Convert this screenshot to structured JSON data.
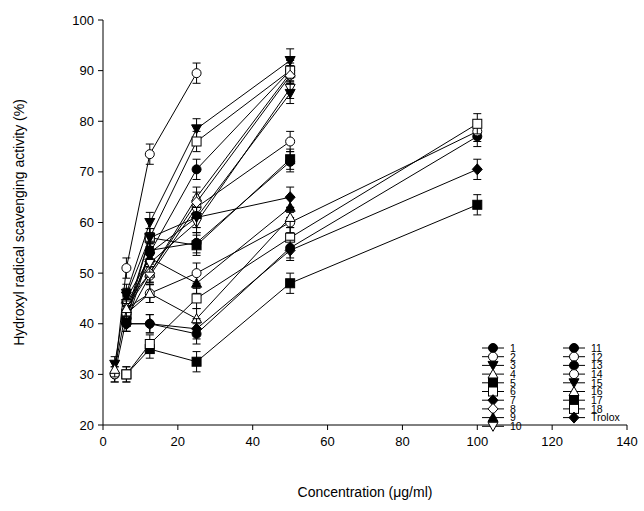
{
  "chart_data": {
    "type": "line",
    "x_label": "Concentration (μg/ml)",
    "y_label": "Hydroxyl radical scavenging activity (%)",
    "x": [
      3.125,
      6.25,
      12.5,
      25,
      50,
      100
    ],
    "xlim": [
      0,
      140
    ],
    "xticks": [
      0,
      20,
      40,
      60,
      80,
      100,
      120,
      140
    ],
    "ylim": [
      20,
      100
    ],
    "yticks": [
      20,
      30,
      40,
      50,
      60,
      70,
      80,
      90,
      100
    ],
    "legend": "lower right",
    "series": [
      {
        "name": "1",
        "color": "#000000",
        "marker": "circle",
        "values": [
          null,
          42,
          54,
          70.5,
          90,
          null
        ],
        "errors": [
          null,
          1.5,
          1.8,
          2,
          2.2,
          null
        ]
      },
      {
        "name": "2",
        "color": "#000000",
        "marker": "circle-open",
        "values": [
          30,
          41,
          49.5,
          63,
          76,
          null
        ],
        "errors": [
          1.5,
          1.5,
          1.8,
          2,
          2,
          null
        ]
      },
      {
        "name": "3",
        "color": "#000000",
        "marker": "triangle-down",
        "values": [
          32,
          46,
          60,
          78.5,
          92,
          null
        ],
        "errors": [
          1.5,
          1.8,
          2,
          2,
          2.3,
          null
        ]
      },
      {
        "name": "4",
        "color": "#000000",
        "marker": "triangle-up-open",
        "values": [
          null,
          43,
          50,
          65,
          89.5,
          null
        ],
        "errors": [
          null,
          1.5,
          1.8,
          2,
          2,
          null
        ]
      },
      {
        "name": "5",
        "color": "#000000",
        "marker": "square",
        "values": [
          null,
          41,
          57,
          55.5,
          72.5,
          null
        ],
        "errors": [
          null,
          1.5,
          1.8,
          2,
          2,
          null
        ]
      },
      {
        "name": "6",
        "color": "#000000",
        "marker": "square-open",
        "values": [
          null,
          42,
          57,
          76,
          90,
          null
        ],
        "errors": [
          null,
          1.5,
          1.8,
          2,
          2,
          null
        ]
      },
      {
        "name": "7",
        "color": "#000000",
        "marker": "diamond",
        "values": [
          null,
          40,
          54,
          61,
          65,
          null
        ],
        "errors": [
          null,
          1.5,
          1.8,
          2,
          2,
          null
        ]
      },
      {
        "name": "8",
        "color": "#000000",
        "marker": "diamond-open",
        "values": [
          null,
          44,
          50,
          64,
          89,
          null
        ],
        "errors": [
          null,
          1.5,
          1.8,
          2,
          2,
          null
        ]
      },
      {
        "name": "9",
        "color": "#000000",
        "marker": "triangle-up",
        "values": [
          null,
          45,
          53,
          48,
          63,
          null
        ],
        "errors": [
          null,
          1.5,
          1.8,
          2,
          2,
          null
        ]
      },
      {
        "name": "10",
        "color": "#000000",
        "marker": "triangle-down-open",
        "values": [
          null,
          44,
          52,
          60,
          86.5,
          null
        ],
        "errors": [
          null,
          1.5,
          1.8,
          2,
          2,
          null
        ]
      },
      {
        "name": "11",
        "color": "#000000",
        "marker": "circle",
        "values": [
          null,
          41,
          54.5,
          56,
          72,
          null
        ],
        "errors": [
          null,
          1.5,
          1.8,
          2,
          2,
          null
        ]
      },
      {
        "name": "12",
        "color": "#000000",
        "marker": "circle-open",
        "values": [
          30,
          51,
          73.5,
          89.5,
          null,
          null
        ],
        "errors": [
          1.5,
          2,
          2,
          2,
          null,
          null
        ]
      },
      {
        "name": "13",
        "color": "#000000",
        "marker": "circle",
        "values": [
          null,
          40,
          40,
          38,
          55,
          77
        ],
        "errors": [
          null,
          1.5,
          1.8,
          2,
          2,
          2
        ]
      },
      {
        "name": "14",
        "color": "#000000",
        "marker": "circle-open",
        "values": [
          null,
          42,
          46,
          50,
          60,
          78
        ],
        "errors": [
          null,
          1.5,
          1.8,
          2,
          2,
          2
        ]
      },
      {
        "name": "15",
        "color": "#000000",
        "marker": "triangle-down",
        "values": [
          null,
          45.5,
          57,
          61,
          85.5,
          null
        ],
        "errors": [
          null,
          1.5,
          1.8,
          2,
          2,
          null
        ]
      },
      {
        "name": "16",
        "color": "#000000",
        "marker": "triangle-up-open",
        "values": [
          31,
          43,
          46,
          41,
          61,
          null
        ],
        "errors": [
          1.5,
          1.5,
          1.8,
          2,
          2,
          null
        ]
      },
      {
        "name": "17",
        "color": "#000000",
        "marker": "square",
        "values": [
          null,
          30,
          35,
          32.5,
          48,
          63.5
        ],
        "errors": [
          null,
          1.5,
          1.8,
          2,
          2,
          2
        ]
      },
      {
        "name": "18",
        "color": "#000000",
        "marker": "square-open",
        "values": [
          null,
          30,
          36,
          45,
          57,
          79.5
        ],
        "errors": [
          null,
          1.5,
          1.8,
          2,
          2,
          2
        ]
      },
      {
        "name": "Trolox",
        "color": "#000000",
        "marker": "diamond",
        "values": [
          null,
          40,
          40,
          39,
          54.5,
          70.5
        ],
        "errors": [
          null,
          1.5,
          1.8,
          2,
          2,
          2
        ]
      }
    ]
  }
}
